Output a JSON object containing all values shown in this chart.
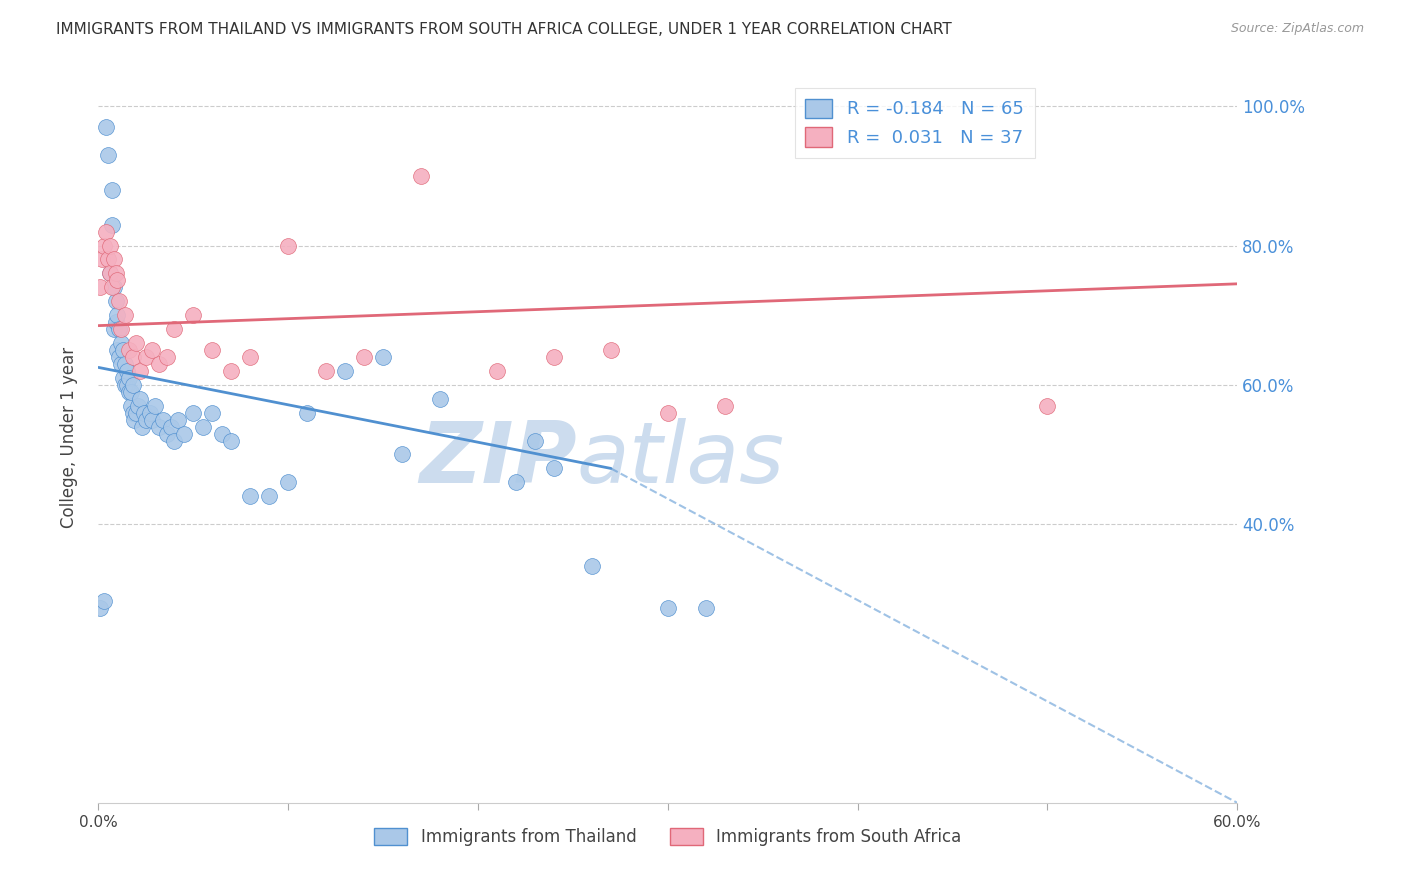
{
  "title": "IMMIGRANTS FROM THAILAND VS IMMIGRANTS FROM SOUTH AFRICA COLLEGE, UNDER 1 YEAR CORRELATION CHART",
  "source": "Source: ZipAtlas.com",
  "ylabel": "College, Under 1 year",
  "xlim": [
    0.0,
    0.6
  ],
  "ylim": [
    0.0,
    1.05
  ],
  "xtick_labels": [
    "0.0%",
    "",
    "",
    "",
    "",
    "",
    "60.0%"
  ],
  "xtick_vals": [
    0.0,
    0.1,
    0.2,
    0.3,
    0.4,
    0.5,
    0.6
  ],
  "ytick_right_labels": [
    "100.0%",
    "80.0%",
    "60.0%",
    "40.0%"
  ],
  "ytick_vals": [
    1.0,
    0.8,
    0.6,
    0.4
  ],
  "legend_r_thailand": "-0.184",
  "legend_n_thailand": "65",
  "legend_r_south_africa": "0.031",
  "legend_n_south_africa": "37",
  "color_thailand": "#aac8e8",
  "color_south_africa": "#f5b0c0",
  "color_thailand_line": "#5090d0",
  "color_south_africa_line": "#e06878",
  "watermark": "ZIPatlas",
  "watermark_color": "#ccdcee",
  "background_color": "#ffffff",
  "thailand_x": [
    0.001,
    0.003,
    0.004,
    0.005,
    0.006,
    0.007,
    0.007,
    0.008,
    0.008,
    0.009,
    0.009,
    0.01,
    0.01,
    0.011,
    0.011,
    0.012,
    0.012,
    0.013,
    0.013,
    0.014,
    0.014,
    0.015,
    0.015,
    0.016,
    0.016,
    0.017,
    0.017,
    0.018,
    0.018,
    0.019,
    0.02,
    0.021,
    0.022,
    0.023,
    0.024,
    0.025,
    0.027,
    0.028,
    0.03,
    0.032,
    0.034,
    0.036,
    0.038,
    0.04,
    0.042,
    0.045,
    0.05,
    0.055,
    0.06,
    0.065,
    0.07,
    0.08,
    0.09,
    0.1,
    0.11,
    0.13,
    0.15,
    0.16,
    0.18,
    0.22,
    0.23,
    0.24,
    0.26,
    0.3,
    0.32
  ],
  "thailand_y": [
    0.28,
    0.29,
    0.97,
    0.93,
    0.76,
    0.83,
    0.88,
    0.68,
    0.74,
    0.69,
    0.72,
    0.65,
    0.7,
    0.64,
    0.68,
    0.63,
    0.66,
    0.61,
    0.65,
    0.6,
    0.63,
    0.6,
    0.62,
    0.59,
    0.61,
    0.57,
    0.59,
    0.56,
    0.6,
    0.55,
    0.56,
    0.57,
    0.58,
    0.54,
    0.56,
    0.55,
    0.56,
    0.55,
    0.57,
    0.54,
    0.55,
    0.53,
    0.54,
    0.52,
    0.55,
    0.53,
    0.56,
    0.54,
    0.56,
    0.53,
    0.52,
    0.44,
    0.44,
    0.46,
    0.56,
    0.62,
    0.64,
    0.5,
    0.58,
    0.46,
    0.52,
    0.48,
    0.34,
    0.28,
    0.28
  ],
  "south_africa_x": [
    0.001,
    0.002,
    0.003,
    0.004,
    0.005,
    0.006,
    0.006,
    0.007,
    0.008,
    0.009,
    0.01,
    0.011,
    0.012,
    0.014,
    0.016,
    0.018,
    0.02,
    0.022,
    0.025,
    0.028,
    0.032,
    0.036,
    0.04,
    0.05,
    0.06,
    0.07,
    0.08,
    0.1,
    0.12,
    0.14,
    0.17,
    0.21,
    0.24,
    0.27,
    0.3,
    0.33,
    0.5
  ],
  "south_africa_y": [
    0.74,
    0.78,
    0.8,
    0.82,
    0.78,
    0.76,
    0.8,
    0.74,
    0.78,
    0.76,
    0.75,
    0.72,
    0.68,
    0.7,
    0.65,
    0.64,
    0.66,
    0.62,
    0.64,
    0.65,
    0.63,
    0.64,
    0.68,
    0.7,
    0.65,
    0.62,
    0.64,
    0.8,
    0.62,
    0.64,
    0.9,
    0.62,
    0.64,
    0.65,
    0.56,
    0.57,
    0.57
  ],
  "thailand_trend_x0": 0.0,
  "thailand_trend_y0": 0.625,
  "thailand_trend_x1": 0.27,
  "thailand_trend_y1": 0.48,
  "thailand_trend_dash_x0": 0.27,
  "thailand_trend_dash_y0": 0.48,
  "thailand_trend_dash_x1": 0.6,
  "thailand_trend_dash_y1": 0.0,
  "south_africa_trend_x0": 0.0,
  "south_africa_trend_y0": 0.685,
  "south_africa_trend_x1": 0.6,
  "south_africa_trend_y1": 0.745
}
